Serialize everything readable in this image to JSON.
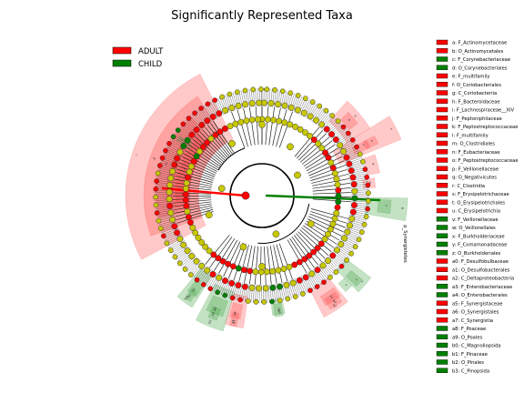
{
  "chart_data": {
    "type": "cladogram",
    "title": "Significantly Represented Taxa",
    "groups": [
      {
        "name": "ADULT",
        "color": "#ff0000"
      },
      {
        "name": "CHILD",
        "color": "#008000"
      }
    ],
    "node_colors": {
      "neutral": "#c8c800",
      "root": "#ff0000"
    },
    "clade_labels": [
      {
        "key": "a",
        "taxon": "F_Actinomycetaceae",
        "group": "ADULT"
      },
      {
        "key": "b",
        "taxon": "O_Actinomycetales",
        "group": "ADULT"
      },
      {
        "key": "c",
        "taxon": "F_Corynebacteriaceae",
        "group": "CHILD"
      },
      {
        "key": "d",
        "taxon": "O_Corynebacteriales",
        "group": "CHILD"
      },
      {
        "key": "e",
        "taxon": "F_multifamily",
        "group": "ADULT"
      },
      {
        "key": "f",
        "taxon": "O_Coriobacteriales",
        "group": "ADULT"
      },
      {
        "key": "g",
        "taxon": "C_Coriobacteriia",
        "group": "ADULT"
      },
      {
        "key": "h",
        "taxon": "F_Bacteroidaceae",
        "group": "ADULT"
      },
      {
        "key": "i",
        "taxon": "F_Lachnospiraceae__XIV",
        "group": "ADULT"
      },
      {
        "key": "j",
        "taxon": "F_Peptoniphilaceae",
        "group": "ADULT"
      },
      {
        "key": "k",
        "taxon": "F_Peptostreptococcaceae",
        "group": "ADULT"
      },
      {
        "key": "l",
        "taxon": "F_multifamily",
        "group": "ADULT"
      },
      {
        "key": "m",
        "taxon": "O_Clostridiales",
        "group": "ADULT"
      },
      {
        "key": "n",
        "taxon": "F_Eubacteriaceae",
        "group": "ADULT"
      },
      {
        "key": "o",
        "taxon": "F_Peptostreptococcaceae",
        "group": "ADULT"
      },
      {
        "key": "p",
        "taxon": "F_Veillonellaceae",
        "group": "ADULT"
      },
      {
        "key": "q",
        "taxon": "O_Negativicutes",
        "group": "ADULT"
      },
      {
        "key": "r",
        "taxon": "C_Clostridia",
        "group": "ADULT"
      },
      {
        "key": "s",
        "taxon": "F_Erysipelotrichaceae",
        "group": "ADULT"
      },
      {
        "key": "t",
        "taxon": "O_Erysipelotrichales",
        "group": "ADULT"
      },
      {
        "key": "u",
        "taxon": "C_Erysipelotrichia",
        "group": "ADULT"
      },
      {
        "key": "v",
        "taxon": "F_Veillonellaceae",
        "group": "CHILD"
      },
      {
        "key": "w",
        "taxon": "O_Veillonellales",
        "group": "CHILD"
      },
      {
        "key": "x",
        "taxon": "F_Burkholderiaceae",
        "group": "CHILD"
      },
      {
        "key": "y",
        "taxon": "F_Comamonadaceae",
        "group": "CHILD"
      },
      {
        "key": "z",
        "taxon": "O_Burkholderiales",
        "group": "CHILD"
      },
      {
        "key": "a0",
        "taxon": "F_Desulfobulbaceae",
        "group": "ADULT"
      },
      {
        "key": "a1",
        "taxon": "O_Desulfobacterales",
        "group": "ADULT"
      },
      {
        "key": "a2",
        "taxon": "C_Deltaproteobacteria",
        "group": "ADULT"
      },
      {
        "key": "a3",
        "taxon": "F_Enterobacteriaceae",
        "group": "CHILD"
      },
      {
        "key": "a4",
        "taxon": "O_Enterobacterales",
        "group": "CHILD"
      },
      {
        "key": "a5",
        "taxon": "F_Synergistaceae",
        "group": "ADULT"
      },
      {
        "key": "a6",
        "taxon": "O_Synergistales",
        "group": "ADULT"
      },
      {
        "key": "a7",
        "taxon": "C_Synergistia",
        "group": "ADULT"
      },
      {
        "key": "a8",
        "taxon": "F_Poaceae",
        "group": "CHILD"
      },
      {
        "key": "a9",
        "taxon": "O_Poales",
        "group": "CHILD"
      },
      {
        "key": "b0",
        "taxon": "C_Magnoliopsida",
        "group": "CHILD"
      },
      {
        "key": "b1",
        "taxon": "F_Pinaceae",
        "group": "CHILD"
      },
      {
        "key": "b2",
        "taxon": "O_Pinales",
        "group": "CHILD"
      },
      {
        "key": "b3",
        "taxon": "C_Pinopsida",
        "group": "CHILD"
      }
    ],
    "highlight_sectors": [
      {
        "label": "r",
        "group": "ADULT",
        "level": "class"
      },
      {
        "label": "m",
        "group": "ADULT",
        "level": "order"
      },
      {
        "label": "g",
        "group": "ADULT",
        "level": "class"
      },
      {
        "label": "f",
        "group": "ADULT",
        "level": "order"
      },
      {
        "label": "e",
        "group": "ADULT",
        "level": "family"
      },
      {
        "label": "d",
        "group": "CHILD",
        "level": "order"
      },
      {
        "label": "c",
        "group": "CHILD",
        "level": "family"
      },
      {
        "label": "u",
        "group": "ADULT",
        "level": "class"
      },
      {
        "label": "t",
        "group": "ADULT",
        "level": "order"
      },
      {
        "label": "s",
        "group": "ADULT",
        "level": "family"
      },
      {
        "label": "q",
        "group": "ADULT",
        "level": "order"
      },
      {
        "label": "p",
        "group": "ADULT",
        "level": "family"
      },
      {
        "label": "b",
        "group": "ADULT",
        "level": "order"
      },
      {
        "label": "a",
        "group": "ADULT",
        "level": "family"
      },
      {
        "label": "w",
        "group": "CHILD",
        "level": "order"
      },
      {
        "label": "v",
        "group": "CHILD",
        "level": "family"
      },
      {
        "label": "z",
        "group": "CHILD",
        "level": "order"
      },
      {
        "label": "x",
        "group": "CHILD",
        "level": "family"
      },
      {
        "label": "y",
        "group": "CHILD",
        "level": "family"
      },
      {
        "label": "a2",
        "group": "ADULT",
        "level": "class"
      },
      {
        "label": "a1",
        "group": "ADULT",
        "level": "order"
      },
      {
        "label": "a0",
        "group": "ADULT",
        "level": "family"
      },
      {
        "label": "a4",
        "group": "CHILD",
        "level": "order"
      },
      {
        "label": "a3",
        "group": "CHILD",
        "level": "family"
      },
      {
        "label": "a7",
        "group": "ADULT",
        "level": "class"
      },
      {
        "label": "a6",
        "group": "ADULT",
        "level": "order"
      },
      {
        "label": "a5",
        "group": "ADULT",
        "level": "family"
      },
      {
        "label": "b0",
        "group": "CHILD",
        "level": "class"
      },
      {
        "label": "a9",
        "group": "CHILD",
        "level": "order"
      },
      {
        "label": "a8",
        "group": "CHILD",
        "level": "family"
      },
      {
        "label": "b3",
        "group": "CHILD",
        "level": "class"
      },
      {
        "label": "b2",
        "group": "CHILD",
        "level": "order"
      },
      {
        "label": "b1",
        "group": "CHILD",
        "level": "family"
      }
    ],
    "phylum_label": "p_Synergistetes",
    "grid": false
  }
}
